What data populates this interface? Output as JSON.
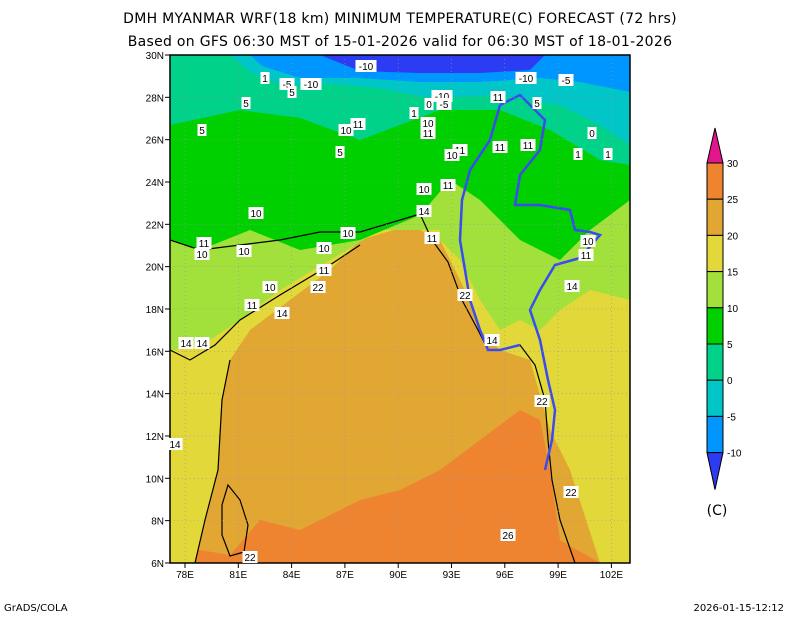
{
  "header": {
    "title": "DMH MYANMAR WRF(18 km) MINIMUM TEMPERATURE(C) FORECAST (72 hrs)",
    "subtitle": "Based on GFS 06:30 MST of 15-01-2026 valid for 06:30 MST of 18-01-2026"
  },
  "map": {
    "lon_labels": [
      "78E",
      "81E",
      "84E",
      "87E",
      "90E",
      "93E",
      "96E",
      "99E",
      "102E"
    ],
    "lat_labels": [
      "30N",
      "28N",
      "26N",
      "24N",
      "22N",
      "20N",
      "18N",
      "16N",
      "14N",
      "12N",
      "10N",
      "8N",
      "6N"
    ],
    "contour_labels": [
      "1",
      "-5",
      "-10",
      "-10",
      "5",
      "5",
      "-10",
      "1",
      "0",
      "-5",
      "10",
      "11",
      "11",
      "-10",
      "-5",
      "5",
      "11",
      "10",
      "5",
      "5",
      "11",
      "10",
      "11",
      "11",
      "1",
      "1",
      "0",
      "11",
      "10",
      "14",
      "10",
      "11",
      "10",
      "10",
      "10",
      "10",
      "11",
      "11",
      "10",
      "22",
      "11",
      "14",
      "14",
      "14",
      "14",
      "10",
      "11",
      "22",
      "14",
      "22",
      "14",
      "22",
      "26",
      "22"
    ]
  },
  "colorbar": {
    "labels": [
      "30",
      "25",
      "20",
      "15",
      "10",
      "5",
      "0",
      "-5",
      "-10"
    ],
    "unit": "(C)",
    "colors": [
      "#e3148c",
      "#ee8430",
      "#e2a733",
      "#e2d83a",
      "#a2e03c",
      "#00cf00",
      "#00d28a",
      "#00c6c8",
      "#0096ff",
      "#2b3cf2"
    ]
  },
  "footer": {
    "left": "GrADS/COLA",
    "right": "2026-01-15-12:12"
  }
}
